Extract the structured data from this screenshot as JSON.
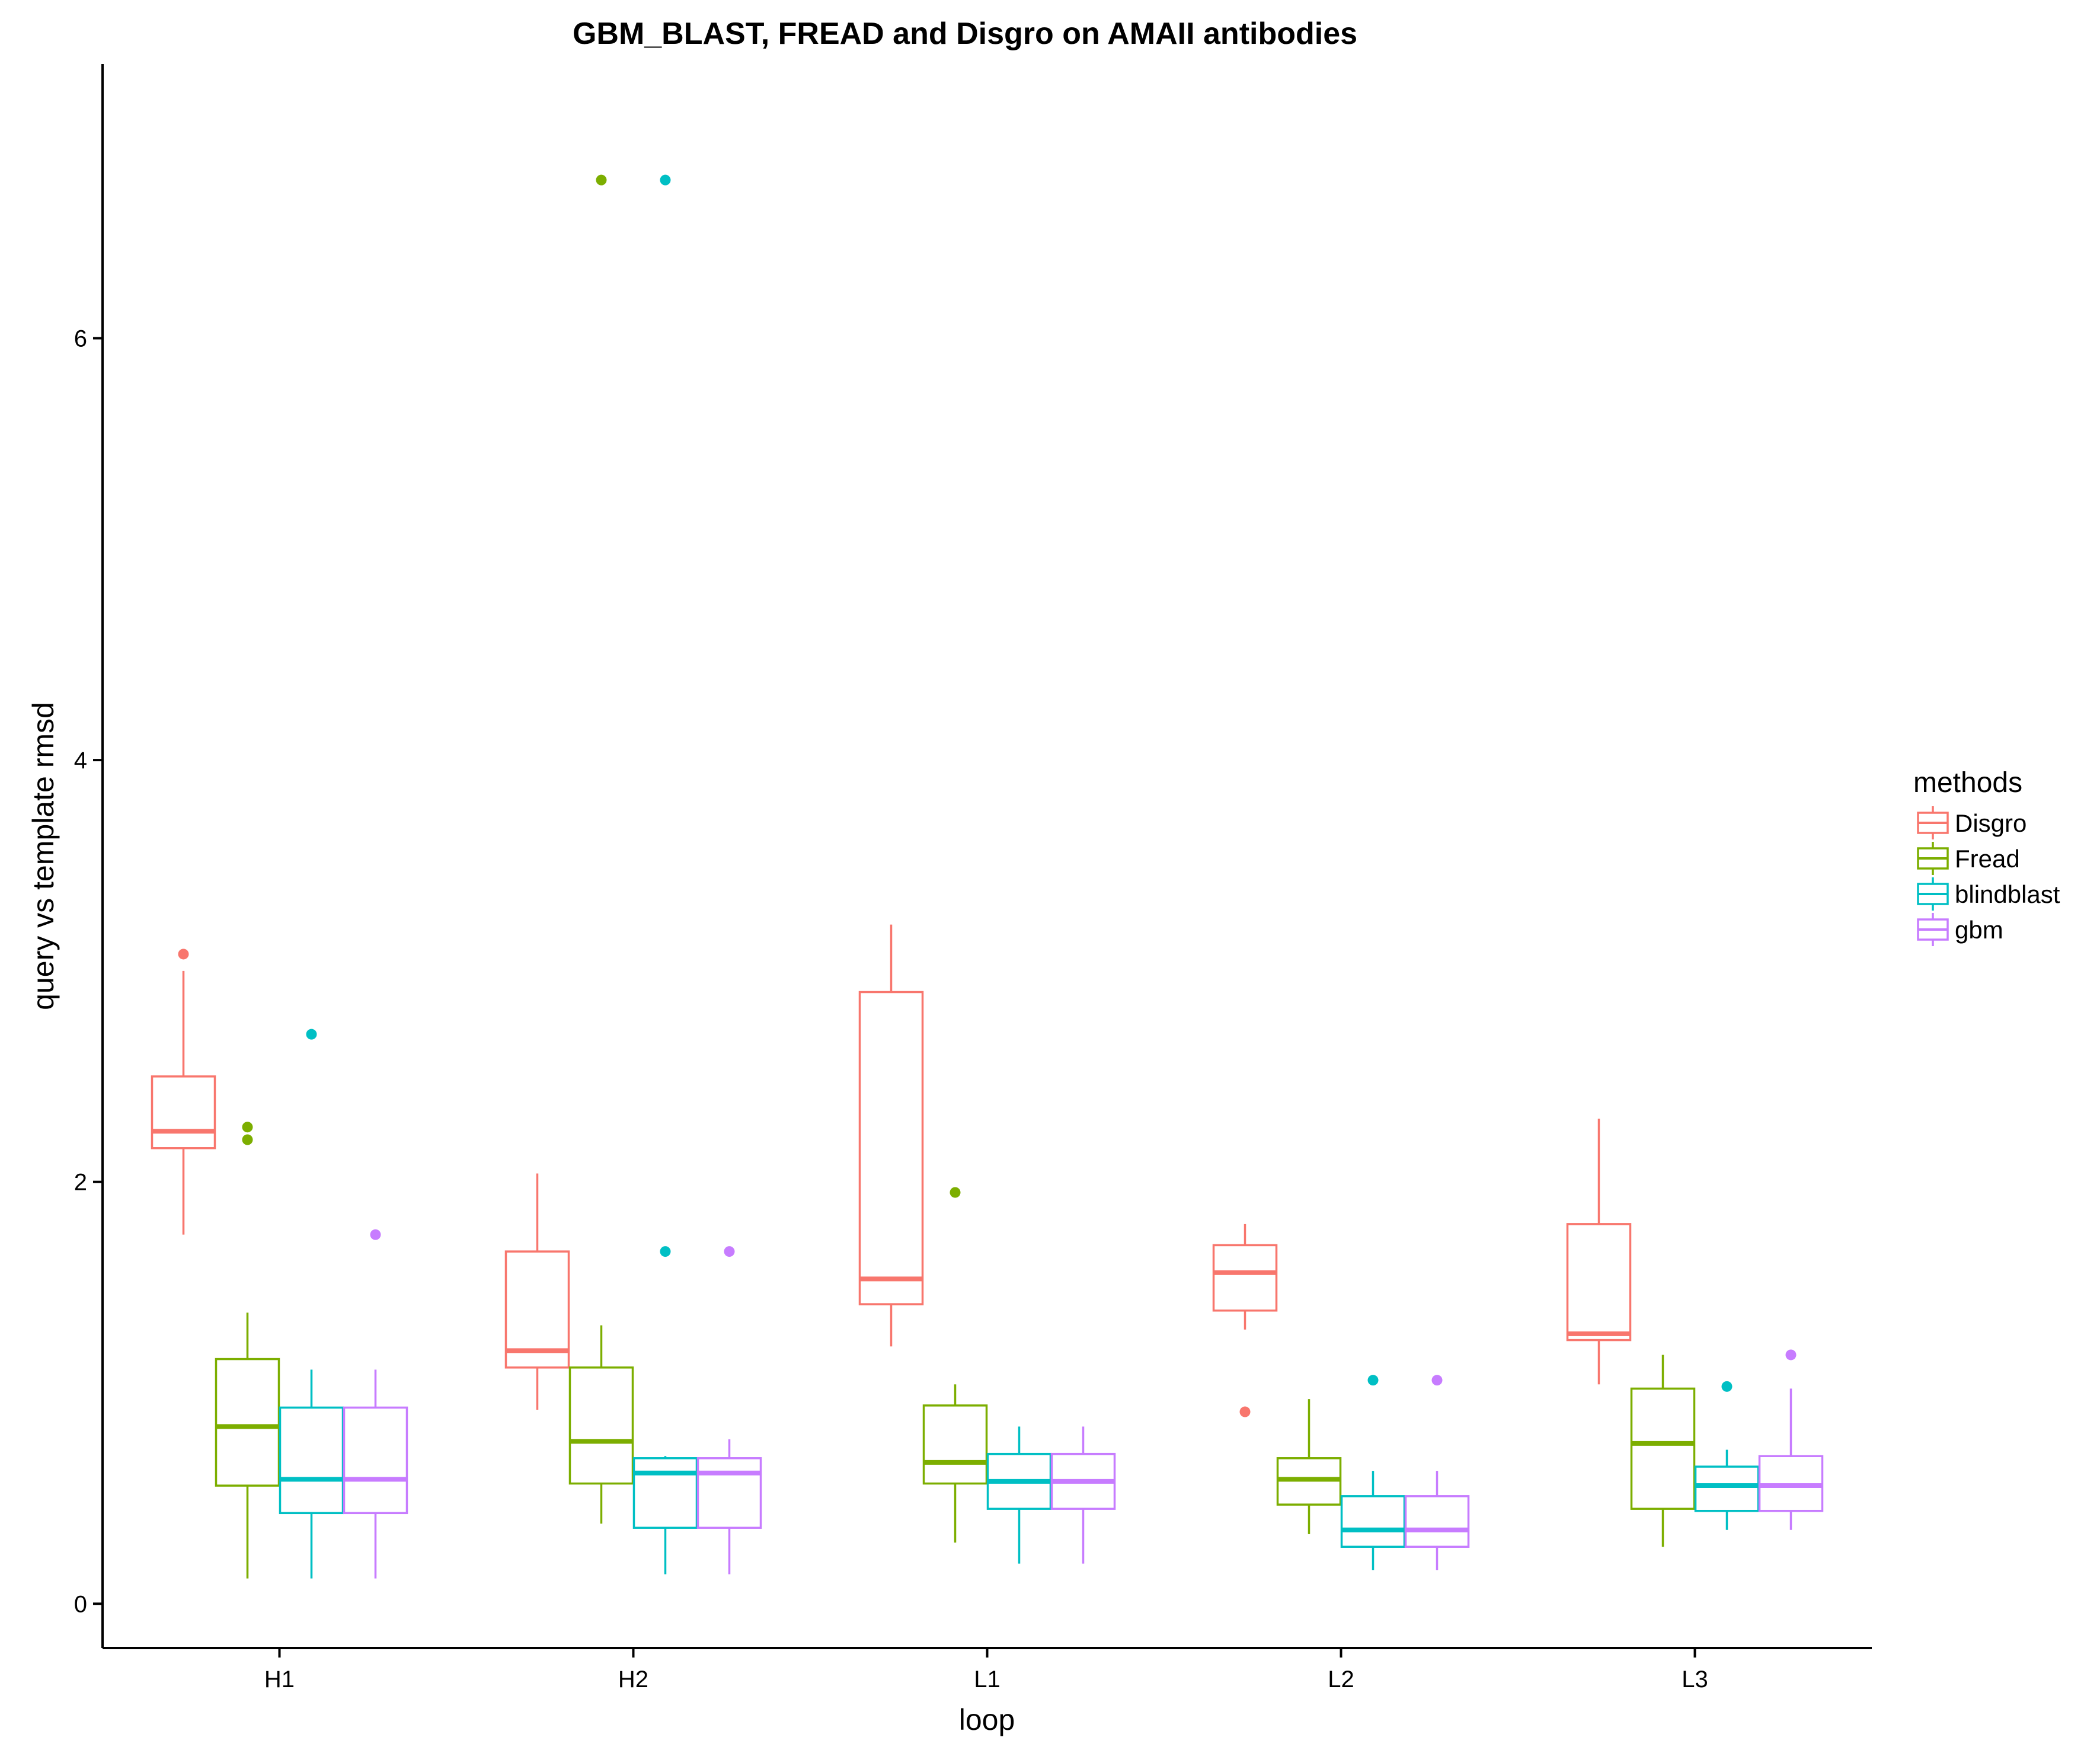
{
  "chart_data": {
    "type": "box",
    "title": "GBM_BLAST, FREAD and Disgro on AMAII antibodies",
    "xlabel": "loop",
    "ylabel": "query vs template rmsd",
    "categories": [
      "H1",
      "H2",
      "L1",
      "L2",
      "L3"
    ],
    "y_ticks": [
      0,
      2,
      4,
      6
    ],
    "ylim": [
      -0.21,
      7.3
    ],
    "grid": false,
    "legend": {
      "title": "methods",
      "placement": "right"
    },
    "series": [
      {
        "name": "Disgro",
        "color": "#F8766D",
        "boxes": [
          {
            "whisker_low": 1.75,
            "q1": 2.16,
            "median": 2.24,
            "q3": 2.5,
            "whisker_high": 3.0,
            "outliers": [
              3.08
            ]
          },
          {
            "whisker_low": 0.92,
            "q1": 1.12,
            "median": 1.2,
            "q3": 1.67,
            "whisker_high": 2.04,
            "outliers": []
          },
          {
            "whisker_low": 1.22,
            "q1": 1.42,
            "median": 1.54,
            "q3": 2.9,
            "whisker_high": 3.22,
            "outliers": []
          },
          {
            "whisker_low": 1.3,
            "q1": 1.39,
            "median": 1.57,
            "q3": 1.7,
            "whisker_high": 1.8,
            "outliers": [
              0.91
            ]
          },
          {
            "whisker_low": 1.04,
            "q1": 1.25,
            "median": 1.28,
            "q3": 1.8,
            "whisker_high": 2.3,
            "outliers": []
          }
        ]
      },
      {
        "name": "Fread",
        "color": "#7CAE00",
        "boxes": [
          {
            "whisker_low": 0.12,
            "q1": 0.56,
            "median": 0.84,
            "q3": 1.16,
            "whisker_high": 1.38,
            "outliers": [
              2.26,
              2.2
            ]
          },
          {
            "whisker_low": 0.38,
            "q1": 0.57,
            "median": 0.77,
            "q3": 1.12,
            "whisker_high": 1.32,
            "outliers": [
              6.75
            ]
          },
          {
            "whisker_low": 0.29,
            "q1": 0.57,
            "median": 0.67,
            "q3": 0.94,
            "whisker_high": 1.04,
            "outliers": [
              1.95
            ]
          },
          {
            "whisker_low": 0.33,
            "q1": 0.47,
            "median": 0.59,
            "q3": 0.69,
            "whisker_high": 0.97,
            "outliers": []
          },
          {
            "whisker_low": 0.27,
            "q1": 0.45,
            "median": 0.76,
            "q3": 1.02,
            "whisker_high": 1.18,
            "outliers": []
          }
        ]
      },
      {
        "name": "blindblast",
        "color": "#00BFC4",
        "boxes": [
          {
            "whisker_low": 0.12,
            "q1": 0.43,
            "median": 0.59,
            "q3": 0.93,
            "whisker_high": 1.11,
            "outliers": [
              2.7
            ]
          },
          {
            "whisker_low": 0.14,
            "q1": 0.36,
            "median": 0.62,
            "q3": 0.69,
            "whisker_high": 0.7,
            "outliers": [
              6.75,
              1.67
            ]
          },
          {
            "whisker_low": 0.19,
            "q1": 0.45,
            "median": 0.58,
            "q3": 0.71,
            "whisker_high": 0.84,
            "outliers": []
          },
          {
            "whisker_low": 0.16,
            "q1": 0.27,
            "median": 0.35,
            "q3": 0.51,
            "whisker_high": 0.63,
            "outliers": [
              1.06
            ]
          },
          {
            "whisker_low": 0.35,
            "q1": 0.44,
            "median": 0.56,
            "q3": 0.65,
            "whisker_high": 0.73,
            "outliers": [
              1.03
            ]
          }
        ]
      },
      {
        "name": "gbm",
        "color": "#C77CFF",
        "boxes": [
          {
            "whisker_low": 0.12,
            "q1": 0.43,
            "median": 0.59,
            "q3": 0.93,
            "whisker_high": 1.11,
            "outliers": [
              1.75
            ]
          },
          {
            "whisker_low": 0.14,
            "q1": 0.36,
            "median": 0.62,
            "q3": 0.69,
            "whisker_high": 0.78,
            "outliers": [
              1.67
            ]
          },
          {
            "whisker_low": 0.19,
            "q1": 0.45,
            "median": 0.58,
            "q3": 0.71,
            "whisker_high": 0.84,
            "outliers": []
          },
          {
            "whisker_low": 0.16,
            "q1": 0.27,
            "median": 0.35,
            "q3": 0.51,
            "whisker_high": 0.63,
            "outliers": [
              1.06
            ]
          },
          {
            "whisker_low": 0.35,
            "q1": 0.44,
            "median": 0.56,
            "q3": 0.7,
            "whisker_high": 1.02,
            "outliers": [
              1.18
            ]
          }
        ]
      }
    ]
  }
}
